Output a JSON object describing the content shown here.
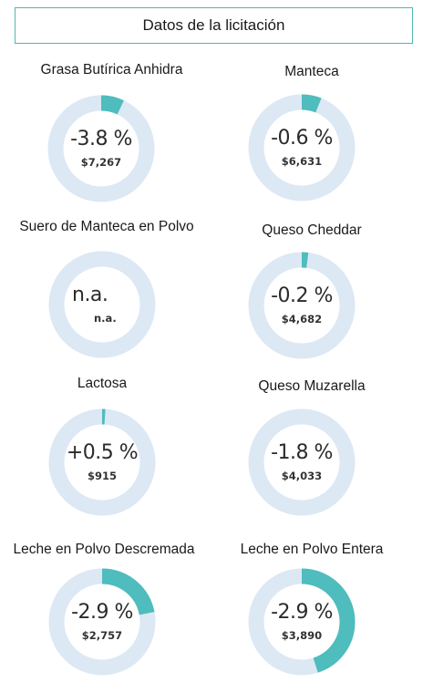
{
  "header": {
    "title": "Datos de la licitación"
  },
  "colors": {
    "accent": "#4fbcbd",
    "track": "#dce8f4",
    "border": "#4fb8b3"
  },
  "products": [
    {
      "name": "Grasa Butírica Anhidra",
      "change": "-3.8 %",
      "price": "$7,267",
      "fill_fraction": 0.07
    },
    {
      "name": "Manteca",
      "change": "-0.6 %",
      "price": "$6,631",
      "fill_fraction": 0.06
    },
    {
      "name": "Suero de Manteca en Polvo",
      "change": "n.a.",
      "price": "n.a.",
      "fill_fraction": 0
    },
    {
      "name": "Queso Cheddar",
      "change": "-0.2 %",
      "price": "$4,682",
      "fill_fraction": 0.02
    },
    {
      "name": "Lactosa",
      "change": "+0.5 %",
      "price": "$915",
      "fill_fraction": 0.01
    },
    {
      "name": "Queso Muzarella",
      "change": "-1.8 %",
      "price": "$4,033",
      "fill_fraction": 0
    },
    {
      "name": "Leche en Polvo Descremada",
      "change": "-2.9 %",
      "price": "$2,757",
      "fill_fraction": 0.22
    },
    {
      "name": "Leche en Polvo Entera",
      "change": "-2.9 %",
      "price": "$3,890",
      "fill_fraction": 0.45
    }
  ]
}
